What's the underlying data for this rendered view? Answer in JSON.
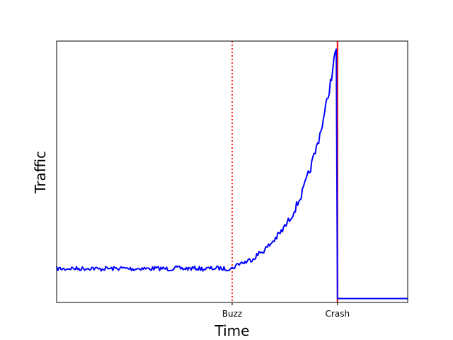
{
  "chart_data": {
    "type": "line",
    "title": "",
    "xlabel": "Time",
    "ylabel": "Traffic",
    "xlim": [
      0,
      100
    ],
    "ylim": [
      0,
      100
    ],
    "grid": false,
    "legend": "none",
    "y_ticks": "none",
    "x_ticks": [
      {
        "label": "Buzz",
        "x": 50
      },
      {
        "label": "Crash",
        "x": 80
      }
    ],
    "annotations": [
      {
        "type": "vline",
        "x": 50,
        "style": "dotted",
        "color": "#ff0000",
        "label": "Buzz"
      },
      {
        "type": "vline",
        "x": 80,
        "style": "solid",
        "color": "#ff0000",
        "label": "Crash"
      }
    ],
    "series": [
      {
        "color": "#0000ff",
        "points": [
          [
            0,
            13
          ],
          [
            2,
            12.8
          ],
          [
            4,
            13.1
          ],
          [
            6,
            12.9
          ],
          [
            8,
            13
          ],
          [
            10,
            13.2
          ],
          [
            12,
            12.7
          ],
          [
            14,
            13
          ],
          [
            16,
            12.9
          ],
          [
            18,
            13.1
          ],
          [
            20,
            13
          ],
          [
            22,
            12.8
          ],
          [
            24,
            13.1
          ],
          [
            26,
            12.9
          ],
          [
            28,
            13
          ],
          [
            30,
            13
          ],
          [
            32,
            12.8
          ],
          [
            34,
            13.2
          ],
          [
            36,
            12.9
          ],
          [
            38,
            13
          ],
          [
            40,
            13.1
          ],
          [
            42,
            12.8
          ],
          [
            44,
            13
          ],
          [
            46,
            13.1
          ],
          [
            48,
            12.9
          ],
          [
            50,
            13
          ],
          [
            52,
            15
          ],
          [
            54,
            15.5
          ],
          [
            56,
            17
          ],
          [
            58,
            19
          ],
          [
            60,
            21
          ],
          [
            62,
            24
          ],
          [
            64,
            27
          ],
          [
            66,
            31
          ],
          [
            68,
            36
          ],
          [
            70,
            42
          ],
          [
            72,
            50
          ],
          [
            74,
            59
          ],
          [
            76,
            70
          ],
          [
            78,
            84
          ],
          [
            80,
            100
          ],
          [
            80,
            1.5
          ],
          [
            100,
            1.5
          ]
        ]
      }
    ]
  }
}
